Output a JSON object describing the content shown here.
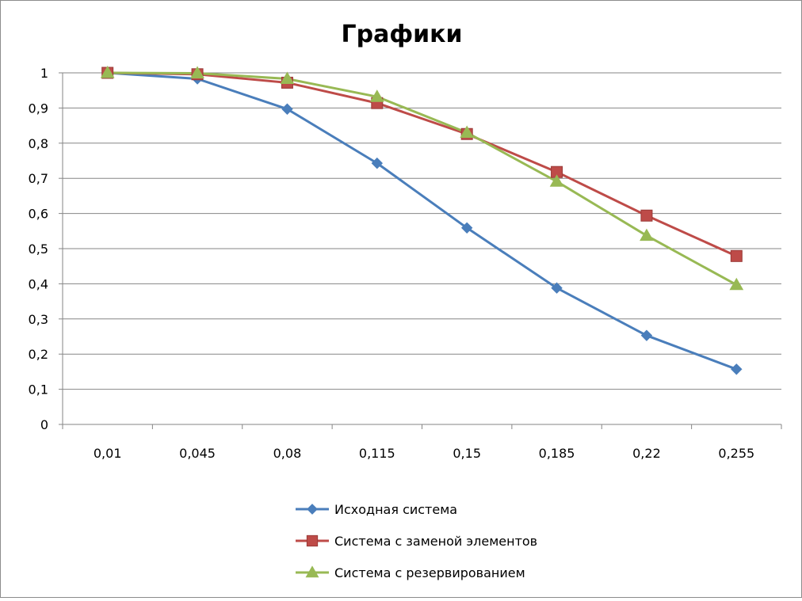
{
  "chart_data": {
    "type": "line",
    "title": "Графики",
    "categories": [
      "0,01",
      "0,045",
      "0,08",
      "0,115",
      "0,15",
      "0,185",
      "0,22",
      "0,255"
    ],
    "ylim": [
      0,
      1
    ],
    "yticks": [
      "0",
      "0,1",
      "0,2",
      "0,3",
      "0,4",
      "0,5",
      "0,6",
      "0,7",
      "0,8",
      "0,9",
      "1"
    ],
    "grid": true,
    "legend_position": "bottom",
    "series": [
      {
        "name": "Исходная система",
        "marker": "diamond",
        "color": "#4A7EBB",
        "values": [
          1.0,
          0.983,
          0.897,
          0.743,
          0.559,
          0.388,
          0.253,
          0.157
        ]
      },
      {
        "name": "Система с заменой элементов",
        "marker": "square",
        "color": "#BE4B48",
        "values": [
          1.0,
          0.996,
          0.972,
          0.914,
          0.826,
          0.718,
          0.594,
          0.479
        ]
      },
      {
        "name": "Система с резервированием",
        "marker": "triangle",
        "color": "#98B954",
        "values": [
          1.0,
          0.999,
          0.983,
          0.932,
          0.83,
          0.691,
          0.537,
          0.397
        ]
      }
    ]
  }
}
